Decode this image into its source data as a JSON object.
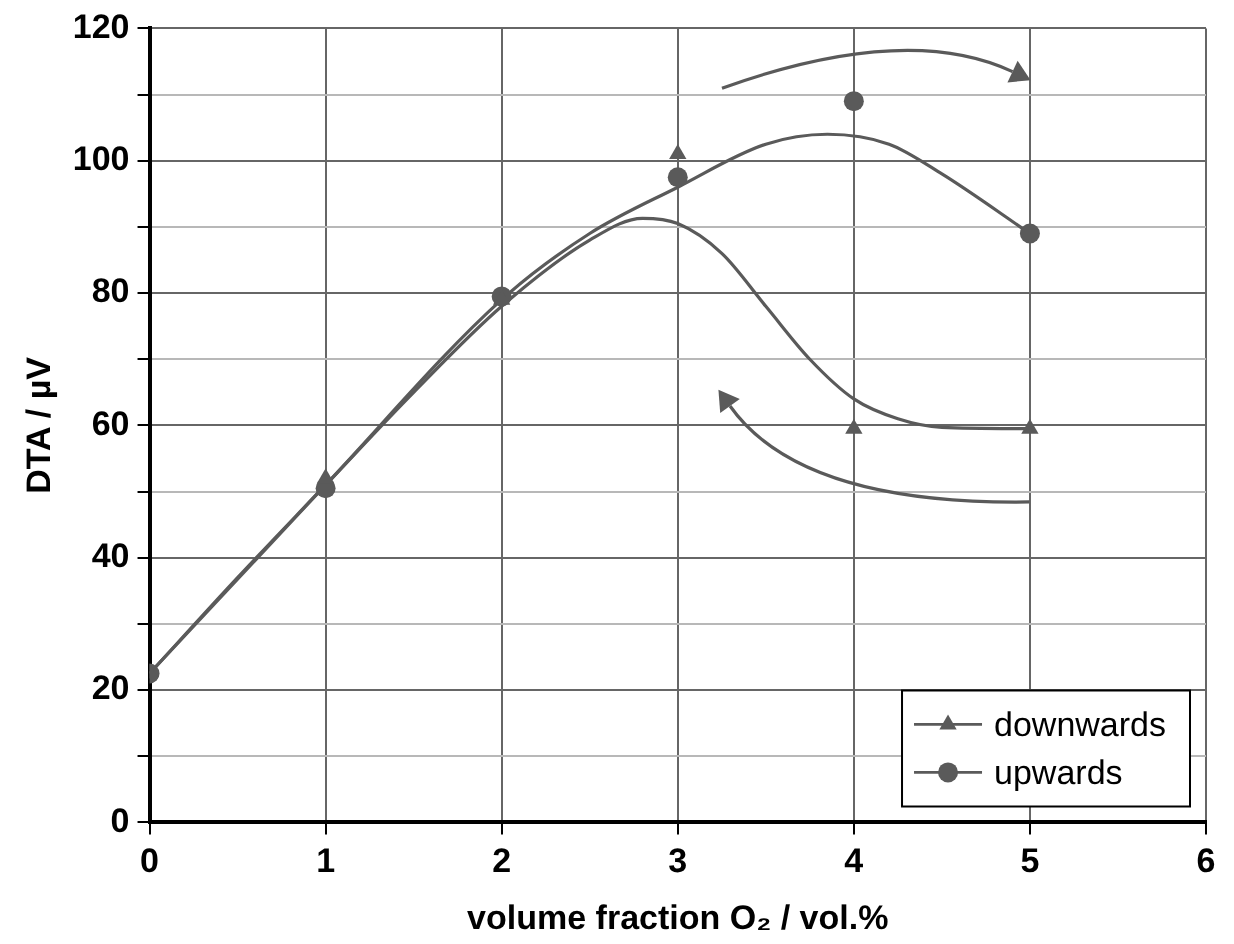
{
  "chart_data": {
    "type": "scatter",
    "xlabel": "volume fraction O₂ / vol.%",
    "ylabel": "DTA / µV",
    "x": [
      0,
      1,
      2,
      3,
      4,
      5
    ],
    "series": [
      {
        "type": "line",
        "marker": "none",
        "color": "#5a5a5a",
        "x": [
          0,
          0.5,
          1,
          1.5,
          2,
          2.5,
          2.8,
          3,
          3.25,
          3.5,
          3.75,
          4,
          4.25,
          4.5,
          5
        ],
        "values": [
          22.5,
          37,
          51,
          65,
          78,
          88,
          91.3,
          90.5,
          86,
          78,
          70,
          64,
          61,
          59.7,
          59.5
        ]
      },
      {
        "type": "line",
        "marker": "none",
        "color": "#5a5a5a",
        "x": [
          0,
          1,
          2,
          2.5,
          3,
          3.5,
          3.85,
          4.2,
          4.5,
          5
        ],
        "values": [
          22.5,
          51,
          79,
          89,
          96,
          102.5,
          104,
          102.5,
          98,
          89
        ]
      },
      {
        "name": "upwards",
        "marker": "circle",
        "color": "#5a5a5a",
        "values": [
          22.5,
          50.5,
          79.5,
          97.5,
          109,
          89
        ]
      },
      {
        "name": "downwards",
        "marker": "triangle",
        "color": "#5a5a5a",
        "values": [
          22.5,
          52,
          79,
          101,
          59.5,
          59.5
        ]
      }
    ],
    "xlim": [
      0,
      6
    ],
    "xticks": [
      0,
      1,
      2,
      3,
      4,
      5,
      6
    ],
    "ylim": [
      0,
      120
    ],
    "yticks": [
      0,
      {
        "value": 10,
        "label": null
      },
      20,
      {
        "value": 30,
        "label": null
      },
      40,
      {
        "value": 50,
        "label": null
      },
      60,
      {
        "value": 70,
        "label": null
      },
      80,
      {
        "value": 90,
        "label": null
      },
      100,
      {
        "value": 110,
        "label": null
      },
      120
    ],
    "grid": true,
    "legend": "bottom right",
    "line_style": "solid"
  }
}
